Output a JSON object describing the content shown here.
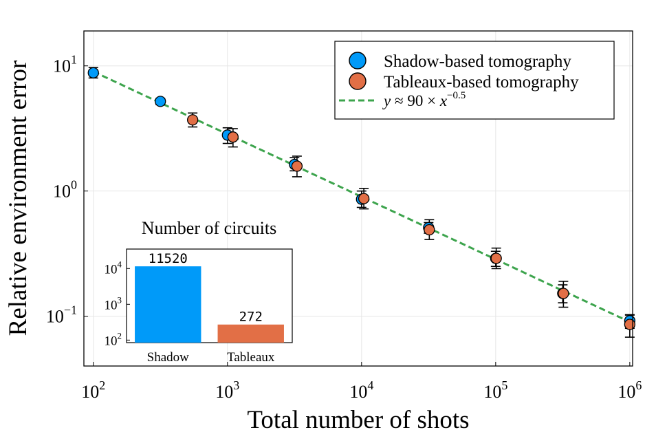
{
  "chart_data": [
    {
      "type": "scatter",
      "title": "",
      "xlabel": "Total number of shots",
      "ylabel": "Relative environment error",
      "xscale": "log",
      "yscale": "log",
      "xlim": [
        85,
        1050000
      ],
      "ylim": [
        0.04,
        19
      ],
      "grid": true,
      "x_ticks": [
        {
          "value": 100,
          "base": "10",
          "exp": "2"
        },
        {
          "value": 1000,
          "base": "10",
          "exp": "3"
        },
        {
          "value": 10000,
          "base": "10",
          "exp": "4"
        },
        {
          "value": 100000,
          "base": "10",
          "exp": "5"
        },
        {
          "value": 1000000,
          "base": "10",
          "exp": "6"
        }
      ],
      "y_ticks": [
        {
          "value": 0.1,
          "base": "10",
          "exp": "−1"
        },
        {
          "value": 1,
          "base": "10",
          "exp": "0"
        },
        {
          "value": 10,
          "base": "10",
          "exp": "1"
        }
      ],
      "legend_position": "top-right",
      "series": [
        {
          "name": "Shadow-based tomography",
          "color": "#009af9",
          "points": [
            {
              "x": 100,
              "y": 8.8,
              "lo": 8.0,
              "hi": 9.7
            },
            {
              "x": 316,
              "y": 5.2,
              "lo": 4.9,
              "hi": 5.5
            },
            {
              "x": 1000,
              "y": 2.8,
              "lo": 2.4,
              "hi": 3.2
            },
            {
              "x": 3162,
              "y": 1.63,
              "lo": 1.45,
              "hi": 1.85
            },
            {
              "x": 10000,
              "y": 0.86,
              "lo": 0.74,
              "hi": 1.0
            },
            {
              "x": 31623,
              "y": 0.51,
              "lo": 0.46,
              "hi": 0.56
            },
            {
              "x": 100000,
              "y": 0.29,
              "lo": 0.25,
              "hi": 0.33
            },
            {
              "x": 316228,
              "y": 0.152,
              "lo": 0.128,
              "hi": 0.178
            },
            {
              "x": 1000000,
              "y": 0.092,
              "lo": 0.08,
              "hi": 0.103
            }
          ]
        },
        {
          "name": "Tableaux-based tomography",
          "color": "#e26f46",
          "points": [
            {
              "x": 550,
              "y": 3.7,
              "lo": 3.25,
              "hi": 4.2
            },
            {
              "x": 1100,
              "y": 2.7,
              "lo": 2.25,
              "hi": 3.15
            },
            {
              "x": 3300,
              "y": 1.58,
              "lo": 1.3,
              "hi": 1.9
            },
            {
              "x": 10400,
              "y": 0.87,
              "lo": 0.72,
              "hi": 1.05
            },
            {
              "x": 32000,
              "y": 0.49,
              "lo": 0.41,
              "hi": 0.59
            },
            {
              "x": 101000,
              "y": 0.29,
              "lo": 0.24,
              "hi": 0.35
            },
            {
              "x": 320000,
              "y": 0.152,
              "lo": 0.118,
              "hi": 0.19
            },
            {
              "x": 1000000,
              "y": 0.086,
              "lo": 0.068,
              "hi": 0.102
            }
          ]
        },
        {
          "name": "fit",
          "legend_prefix": "y",
          "legend_rel": " ≈ 90 × ",
          "legend_var": "x",
          "legend_exp": "−0.5",
          "color": "#3da44d",
          "style": "dashed",
          "coefficient": 90,
          "exponent": -0.5
        }
      ]
    },
    {
      "type": "bar",
      "title": "Number of circuits",
      "yscale": "log",
      "ylim": [
        85,
        35000
      ],
      "categories": [
        "Shadow",
        "Tableaux"
      ],
      "values": [
        11520,
        272
      ],
      "data_labels": [
        "11520",
        "272"
      ],
      "colors": [
        "#009af9",
        "#e26f46"
      ],
      "y_ticks": [
        {
          "value": 100,
          "base": "10",
          "exp": "2"
        },
        {
          "value": 1000,
          "base": "10",
          "exp": "3"
        },
        {
          "value": 10000,
          "base": "10",
          "exp": "4"
        }
      ]
    }
  ]
}
